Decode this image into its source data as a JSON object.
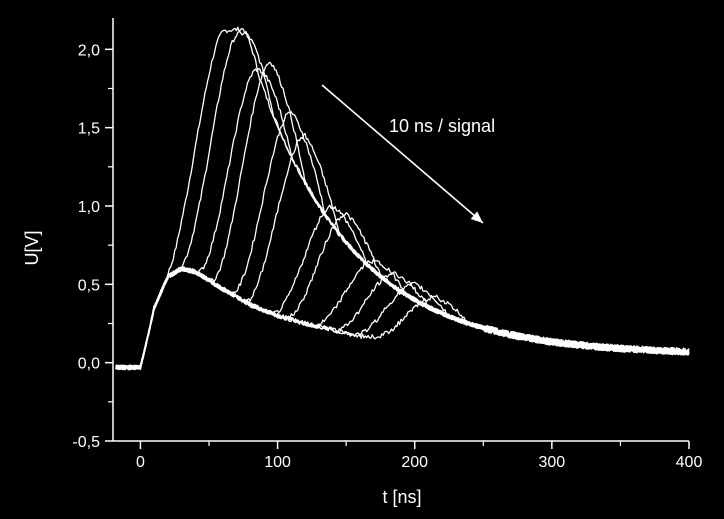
{
  "chart_data": {
    "type": "line",
    "xlabel": "t [ns]",
    "ylabel": "U[V]",
    "xlim": [
      -20,
      400
    ],
    "ylim": [
      -0.5,
      2.2
    ],
    "xticks": [
      0,
      100,
      200,
      300,
      400
    ],
    "xtick_labels": [
      "0",
      "100",
      "200",
      "300",
      "400"
    ],
    "yticks": [
      -0.5,
      0.0,
      0.5,
      1.0,
      1.5,
      2.0
    ],
    "ytick_labels": [
      "-0,5",
      "0,0",
      "0,5",
      "1,0",
      "1,5",
      "2,0"
    ],
    "annotation": "10 ns / signal",
    "background": "#000000",
    "line_color": "#ffffff",
    "grid": false,
    "base_curve": {
      "x": [
        -20,
        0,
        5,
        10,
        20,
        30,
        40,
        60,
        80,
        100,
        120,
        140,
        150,
        160,
        180,
        200,
        220,
        240,
        260,
        280,
        300,
        320,
        340,
        360,
        380,
        400
      ],
      "y": [
        -0.03,
        -0.03,
        0.15,
        0.35,
        0.55,
        0.6,
        0.58,
        0.47,
        0.37,
        0.3,
        0.25,
        0.21,
        0.19,
        0.17,
        0.16,
        0.15,
        0.14,
        0.13,
        0.12,
        0.11,
        0.1,
        0.09,
        0.08,
        0.07,
        0.06,
        0.05
      ]
    },
    "series": [
      {
        "peak_t": 62,
        "peak_v": 2.12
      },
      {
        "peak_t": 72,
        "peak_v": 2.1
      },
      {
        "peak_t": 85,
        "peak_v": 1.87
      },
      {
        "peak_t": 95,
        "peak_v": 1.92
      },
      {
        "peak_t": 110,
        "peak_v": 1.6
      },
      {
        "peak_t": 120,
        "peak_v": 1.45
      },
      {
        "peak_t": 140,
        "peak_v": 1.0
      },
      {
        "peak_t": 150,
        "peak_v": 0.95
      },
      {
        "peak_t": 170,
        "peak_v": 0.65
      },
      {
        "peak_t": 185,
        "peak_v": 0.57
      },
      {
        "peak_t": 200,
        "peak_v": 0.5
      },
      {
        "peak_t": 215,
        "peak_v": 0.42
      }
    ],
    "x": [
      -20,
      0,
      5,
      10,
      20,
      30,
      40,
      60,
      62,
      72,
      80,
      85,
      95,
      100,
      110,
      120,
      140,
      150,
      160,
      170,
      180,
      185,
      200,
      215,
      220,
      240,
      260,
      280,
      300,
      320,
      340,
      360,
      380,
      400
    ]
  }
}
